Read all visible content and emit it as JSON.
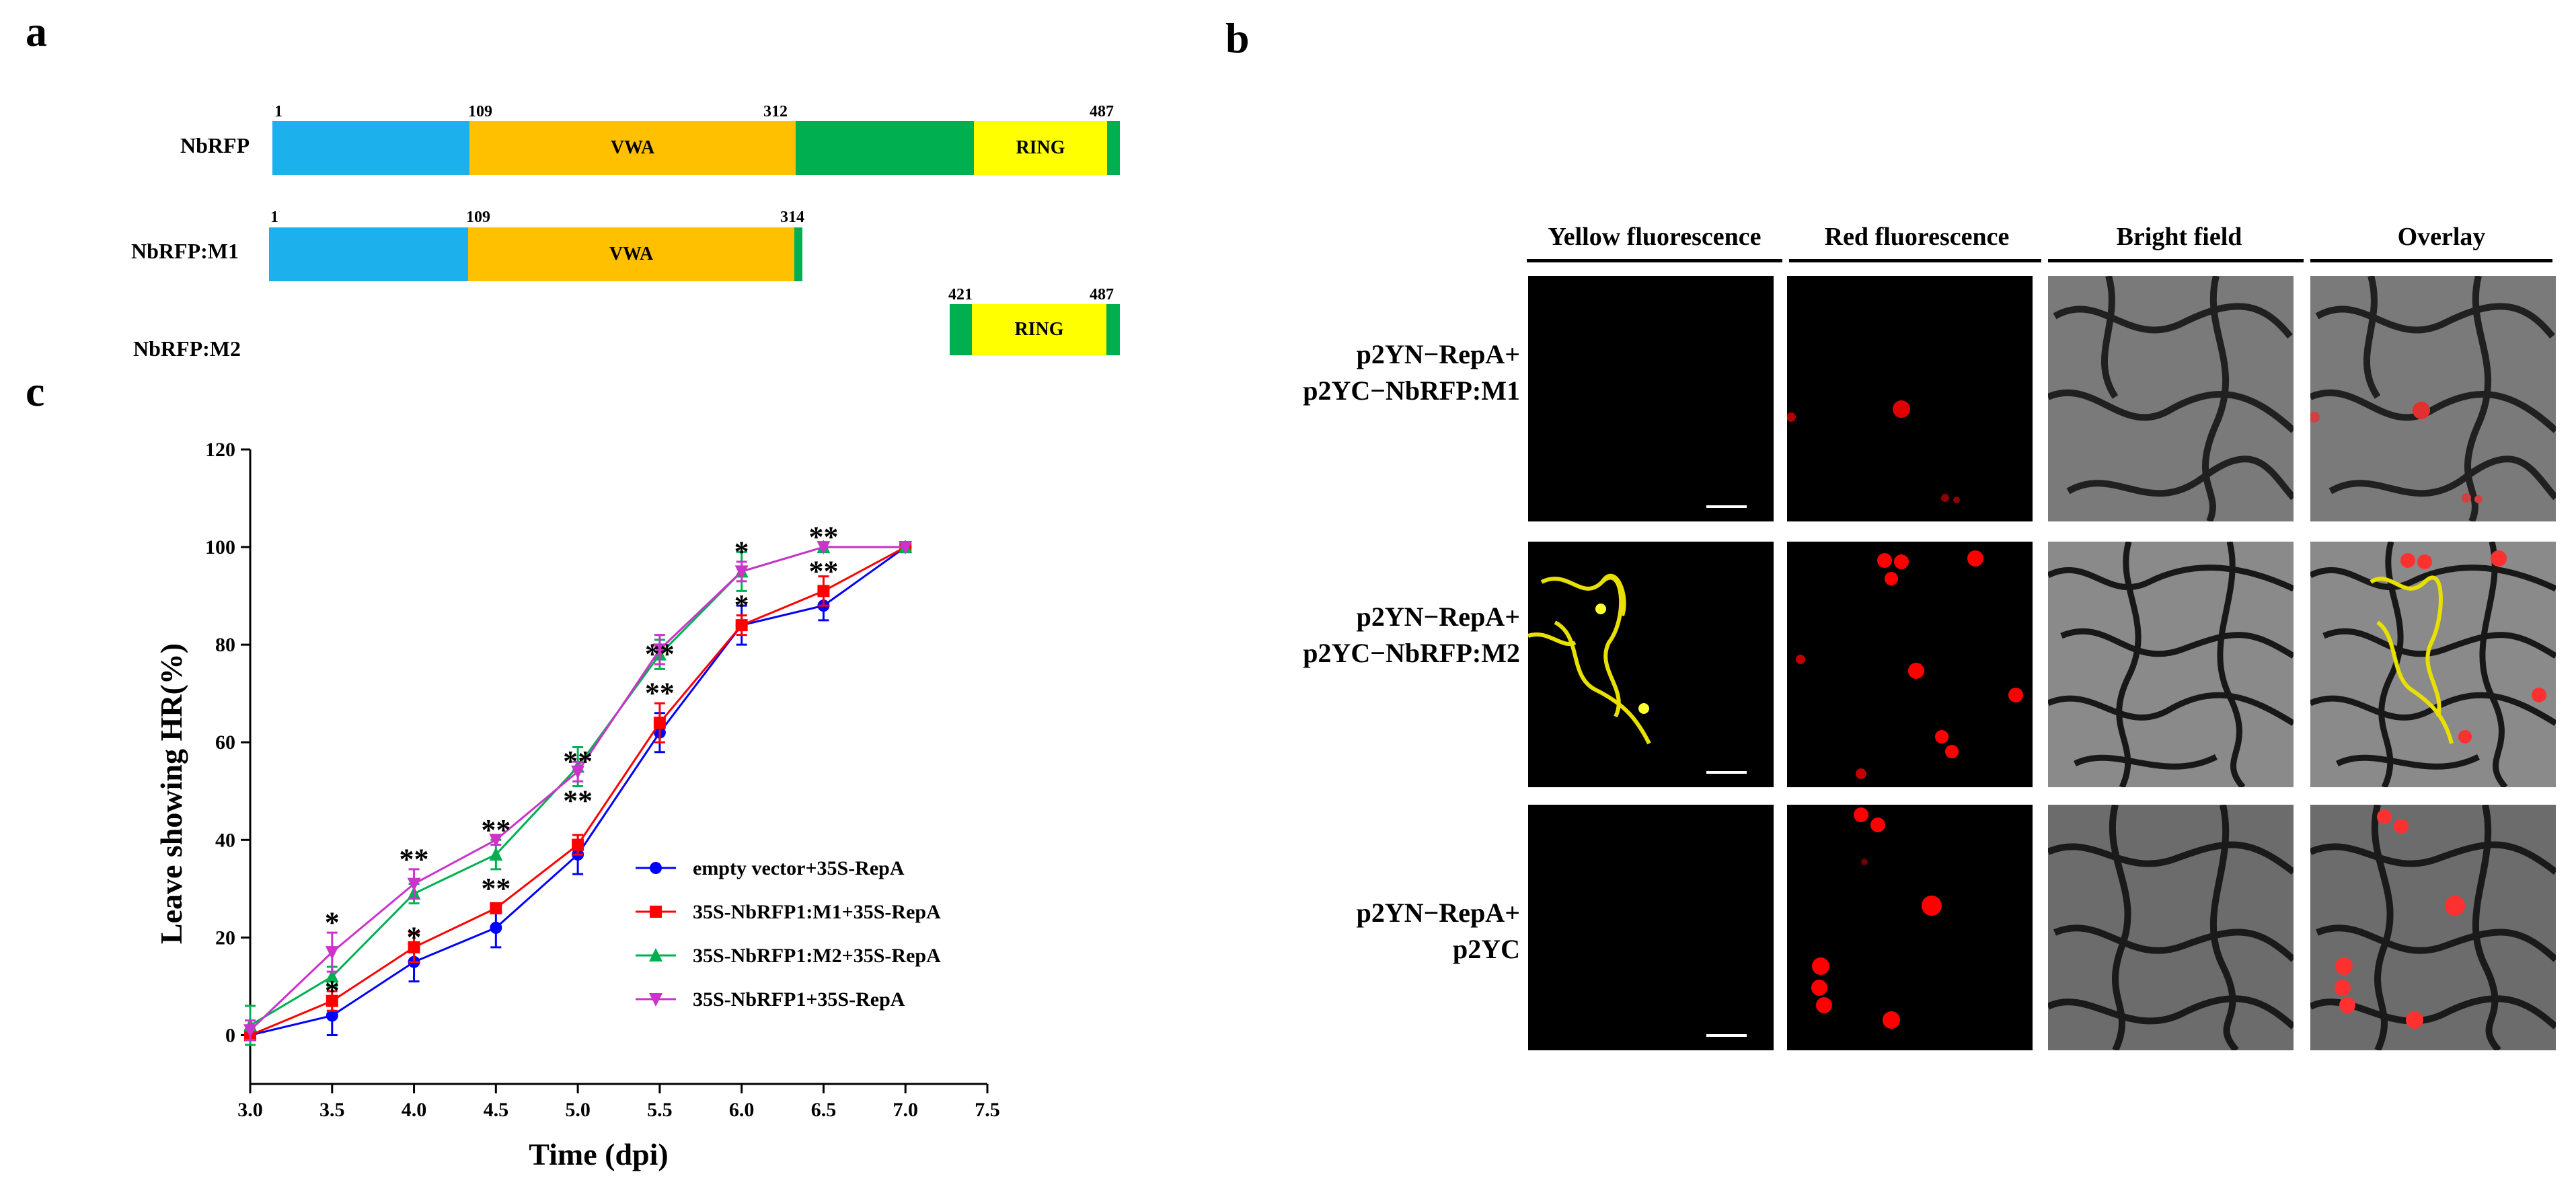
{
  "panels": {
    "a": "a",
    "b": "b",
    "c": "c"
  },
  "domain_diagram": {
    "rows": [
      {
        "name": "NbRFP",
        "labels": {
          "start": "1",
          "p1": "109",
          "p2": "312",
          "end": "487"
        },
        "vwa": "VWA",
        "ring": "RING"
      },
      {
        "name": "NbRFP:M1",
        "labels": {
          "start": "1",
          "p1": "109",
          "end": "314"
        },
        "vwa": "VWA"
      },
      {
        "name": "NbRFP:M2",
        "labels": {
          "start": "421",
          "end": "487"
        },
        "ring": "RING"
      }
    ],
    "colors": {
      "blue": "#1CB0EC",
      "orange": "#FFC000",
      "green": "#00B050",
      "yellow": "#FFFF00"
    }
  },
  "bifc": {
    "columns": [
      "Yellow fluorescence",
      "Red fluorescence",
      "Bright field",
      "Overlay"
    ],
    "rows": [
      {
        "line1": "p2YN−RepA+",
        "line2": "p2YC−NbRFP:M1"
      },
      {
        "line1": "p2YN−RepA+",
        "line2": "p2YC−NbRFP:M2"
      },
      {
        "line1": "p2YN−RepA+",
        "line2": "p2YC"
      }
    ]
  },
  "chart_data": {
    "type": "line",
    "xlabel": "Time (dpi)",
    "ylabel": "Leave showing HR(%)",
    "xlim": [
      3.0,
      7.5
    ],
    "ylim": [
      -10,
      120
    ],
    "xticks": [
      "3.0",
      "3.5",
      "4.0",
      "4.5",
      "5.0",
      "5.5",
      "6.0",
      "6.5",
      "7.0",
      "7.5"
    ],
    "yticks": [
      "0",
      "20",
      "40",
      "60",
      "80",
      "100",
      "120"
    ],
    "x": [
      3.0,
      3.5,
      4.0,
      4.5,
      5.0,
      5.5,
      6.0,
      6.5,
      7.0
    ],
    "series": [
      {
        "name": "empty vector+35S-RepA",
        "color": "#0000FF",
        "marker": "circle",
        "values": [
          0,
          4,
          15,
          22,
          37,
          62,
          84,
          88,
          100
        ],
        "errors": [
          1,
          4,
          4,
          4,
          4,
          4,
          4,
          3,
          0
        ]
      },
      {
        "name": "35S-NbRFP1:M1+35S-RepA",
        "color": "#FF0000",
        "marker": "square",
        "values": [
          0,
          7,
          18,
          26,
          39,
          64,
          84,
          91,
          100
        ],
        "errors": [
          1,
          2,
          3,
          1,
          2,
          4,
          2,
          3,
          0
        ]
      },
      {
        "name": "35S-NbRFP1:M2+35S-RepA",
        "color": "#00B050",
        "marker": "triangle-up",
        "values": [
          2,
          12,
          29,
          37,
          55,
          78,
          95,
          100,
          100
        ],
        "errors": [
          4,
          2,
          2,
          3,
          4,
          3,
          4,
          0,
          0
        ]
      },
      {
        "name": "35S-NbRFP1+35S-RepA",
        "color": "#CC33CC",
        "marker": "triangle-down",
        "values": [
          1,
          17,
          31,
          40,
          54,
          79,
          95,
          100,
          100
        ],
        "errors": [
          2,
          4,
          3,
          1,
          2,
          3,
          2,
          0,
          0
        ]
      }
    ],
    "annotations": [
      {
        "x": 3.5,
        "y": 23,
        "text": "*"
      },
      {
        "x": 3.5,
        "y": 9,
        "text": "*"
      },
      {
        "x": 4.0,
        "y": 36,
        "text": "**"
      },
      {
        "x": 4.0,
        "y": 20,
        "text": "*"
      },
      {
        "x": 4.5,
        "y": 42,
        "text": "**"
      },
      {
        "x": 4.5,
        "y": 30,
        "text": "**"
      },
      {
        "x": 5.0,
        "y": 56,
        "text": "**"
      },
      {
        "x": 5.0,
        "y": 48,
        "text": "**"
      },
      {
        "x": 5.5,
        "y": 78,
        "text": "**"
      },
      {
        "x": 5.5,
        "y": 70,
        "text": "**"
      },
      {
        "x": 6.0,
        "y": 99,
        "text": "*"
      },
      {
        "x": 6.0,
        "y": 88,
        "text": "*"
      },
      {
        "x": 6.5,
        "y": 102,
        "text": "**"
      },
      {
        "x": 6.5,
        "y": 95,
        "text": "**"
      }
    ]
  }
}
